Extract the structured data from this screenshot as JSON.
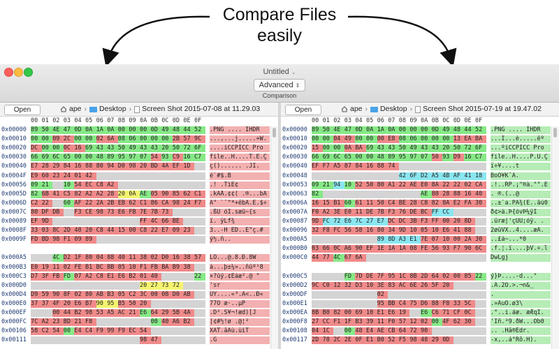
{
  "promo": {
    "line1": "Compare Files",
    "line2": "easily"
  },
  "window": {
    "title": "Untitled",
    "mode_value": "Advanced",
    "mode_caption": "Comparison"
  },
  "colors": {
    "green": "#86e986",
    "red": "#f08a8a",
    "blue": "#8ae6f0",
    "yellow": "#f4f470",
    "gray": "#d4d4d4"
  },
  "hex_header": [
    "00",
    "01",
    "02",
    "03",
    "04",
    "05",
    "06",
    "07",
    "08",
    "09",
    "0A",
    "0B",
    "0C",
    "0D",
    "0E",
    "0F"
  ],
  "left": {
    "open_label": "Open",
    "crumbs": [
      "ape",
      "Desktop",
      "Screen Shot 2015-07-08 at 11.29.03"
    ],
    "rows": [
      {
        "addr": "0x00000",
        "hex": [
          "89",
          "50",
          "4E",
          "47",
          "0D",
          "0A",
          "1A",
          "0A",
          "00",
          "00",
          "00",
          "0D",
          "49",
          "48",
          "44",
          "52"
        ],
        "text": ".PNG  ....  IHDR"
      },
      {
        "addr": "0x00010",
        "hex": [
          "00",
          "00",
          "09",
          "2C",
          "00",
          "00",
          "02",
          "6A",
          "08",
          "06",
          "00",
          "00",
          "00",
          "2B",
          "57",
          "9C"
        ],
        "text": "...,...j.....+W."
      },
      {
        "addr": "0x00020",
        "hex": [
          "DC",
          "00",
          "00",
          "0C",
          "16",
          "69",
          "43",
          "43",
          "50",
          "49",
          "43",
          "43",
          "20",
          "50",
          "72",
          "6F"
        ],
        "text": "....iCCPICC Pro"
      },
      {
        "addr": "0x00030",
        "hex": [
          "66",
          "69",
          "6C",
          "65",
          "00",
          "00",
          "48",
          "89",
          "95",
          "97",
          "07",
          "54",
          "93",
          "C9",
          "16",
          "C7"
        ],
        "text": "file..H....T.É.Ç"
      },
      {
        "addr": "0x00040",
        "hex": [
          "E7",
          "28",
          "29",
          "84",
          "16",
          "88",
          "80",
          "94",
          "D0",
          "98",
          "20",
          "BD",
          "4A",
          "EF",
          "1D",
          ""
        ],
        "text": "ç()...... .JÏ."
      },
      {
        "addr": "0x0004F",
        "hex": [
          "E9",
          "60",
          "23",
          "24",
          "01",
          "42",
          "",
          "",
          "",
          "",
          "",
          "",
          "",
          "",
          "",
          ""
        ],
        "text": "é`#$.B"
      },
      {
        "addr": "0x00056",
        "hex": [
          "09",
          "21",
          "",
          "10",
          "54",
          "EC",
          "C8",
          "A2",
          "",
          "",
          "",
          "",
          "",
          "",
          "",
          ""
        ],
        "text": ".! .TìÈ¢"
      },
      {
        "addr": "0x0005D",
        "hex": [
          "82",
          "6B",
          "41",
          "C5",
          "82",
          "A2",
          "A2",
          "28",
          "20",
          "0A",
          "AE",
          "05",
          "90",
          "85",
          "62",
          "C1"
        ],
        "text": ".kAÅ.¢¢( .®...bÁ"
      },
      {
        "addr": "0x0006D",
        "hex": [
          "C2",
          "22",
          "",
          "60",
          "AF",
          "22",
          "2A",
          "2B",
          "EB",
          "62",
          "C1",
          "86",
          "CA",
          "98",
          "24",
          "F7"
        ],
        "text": "Â\" `¯\"*+ëbÁ.Ê.$÷"
      },
      {
        "addr": "0x0007C",
        "hex": [
          "80",
          "DF",
          "DB",
          "",
          "F3",
          "CE",
          "98",
          "73",
          "E6",
          "FB",
          "7E",
          "7B",
          "73",
          "",
          "",
          ""
        ],
        "text": ".ßÛ óÎ.sæû~{s"
      },
      {
        "addr": "0x00089",
        "hex": [
          "EF",
          "9D",
          "",
          "",
          "",
          "",
          "",
          "",
          "",
          "",
          "FF",
          "4C",
          "66",
          "BE",
          "",
          ""
        ],
        "text": "ï.        ÿLf¾"
      },
      {
        "addr": "0x0008F",
        "hex": [
          "33",
          "03",
          "8C",
          "2D",
          "48",
          "20",
          "C8",
          "44",
          "15",
          "00",
          "C8",
          "22",
          "E7",
          "09",
          "23",
          ""
        ],
        "text": "3..-H ÈD..È\"ç.#"
      },
      {
        "addr": "0x0009F",
        "hex": [
          "FD",
          "BD",
          "98",
          "F1",
          "09",
          "89",
          "",
          "",
          "",
          "",
          "",
          "",
          "",
          "",
          "",
          ""
        ],
        "text": "ý½.ñ.."
      },
      {
        "addr": "",
        "hex": [],
        "text": ""
      },
      {
        "addr": "0x000A5",
        "hex": [
          "",
          "",
          "4C",
          "D2",
          "1F",
          "80",
          "04",
          "88",
          "40",
          "11",
          "38",
          "02",
          "D0",
          "16",
          "38",
          "57"
        ],
        "text": "  LÒ...@.8.Ð.8W"
      },
      {
        "addr": "0x000B3",
        "hex": [
          "E0",
          "19",
          "11",
          "02",
          "FE",
          "B1",
          "BC",
          "BB",
          "05",
          "10",
          "F1",
          "FB",
          "BA",
          "B9",
          "38",
          ""
        ],
        "text": "à...þ±¼»..ñûº¹8"
      },
      {
        "addr": "0x000C3",
        "hex": [
          "D7",
          "3F",
          "FB",
          "FD",
          "07",
          "A2",
          "C8",
          "E1",
          "E6",
          "B2",
          "01",
          "40",
          "",
          "",
          "",
          "22"
        ],
        "text": "×?ûý.¢Èáæ².@   \""
      },
      {
        "addr": "0x000D0",
        "hex": [
          "",
          "",
          "",
          "",
          "",
          "",
          "",
          "",
          "",
          "",
          "20",
          "27",
          "73",
          "72",
          "",
          ""
        ],
        "text": "           'sr"
      },
      {
        "addr": "0x000D4",
        "hex": [
          "D9",
          "59",
          "90",
          "8F",
          "02",
          "80",
          "AB",
          "B3",
          "05",
          "C2",
          "3C",
          "00",
          "08",
          "D0",
          "AB",
          ""
        ],
        "text": "ÙY....«³.Â<..Ð«"
      },
      {
        "addr": "0x000E0",
        "hex": [
          "37",
          "37",
          "4F",
          "20",
          "E6",
          "B7",
          "90",
          "95",
          "B5",
          "50",
          "20",
          "",
          "",
          "",
          "",
          ""
        ],
        "text": "77O æ·..µP "
      },
      {
        "addr": "0x000EF",
        "hex": [
          "",
          "",
          "00",
          "44",
          "B2",
          "98",
          "53",
          "A5",
          "AC",
          "21",
          "E6",
          "64",
          "29",
          "5B",
          "4A",
          ""
        ],
        "text": "  .D².S¥¬!æd)[J"
      },
      {
        "addr": "0x000FC",
        "hex": [
          "7C",
          "A2",
          "23",
          "BD",
          "21",
          "F8",
          "",
          "",
          "",
          "",
          "",
          "00",
          "40",
          "A6",
          "B2",
          ""
        ],
        "text": "|¢#½!ø     .@¦²"
      },
      {
        "addr": "0x00106",
        "hex": [
          "58",
          "C2",
          "54",
          "00",
          "E4",
          "C4",
          "F9",
          "99",
          "F9",
          "EC",
          "54",
          "",
          "",
          "",
          "",
          ""
        ],
        "text": "XÂT.äÄù.ùìT"
      },
      {
        "addr": "0x00111",
        "hex": [
          "",
          "",
          "",
          "",
          "",
          "",
          "",
          "",
          "",
          "",
          "98",
          "47",
          "",
          "",
          "",
          ""
        ],
        "text": "          .G"
      }
    ]
  },
  "right": {
    "open_label": "Open",
    "crumbs": [
      "ape",
      "Desktop",
      "Screen Shot 2015-07-19 at 19.47.02"
    ],
    "rows": [
      {
        "addr": "0x00000",
        "hex": [
          "89",
          "50",
          "4E",
          "47",
          "0D",
          "0A",
          "1A",
          "0A",
          "00",
          "00",
          "00",
          "0D",
          "49",
          "48",
          "44",
          "52"
        ],
        "text": ".PNG  ....  IHDR"
      },
      {
        "addr": "0x00010",
        "hex": [
          "00",
          "00",
          "04",
          "49",
          "00",
          "00",
          "00",
          "E8",
          "08",
          "06",
          "00",
          "00",
          "00",
          "13",
          "EA",
          "BA"
        ],
        "text": "...I...è.....êº"
      },
      {
        "addr": "0x00020",
        "hex": [
          "15",
          "00",
          "00",
          "0A",
          "BA",
          "69",
          "43",
          "43",
          "50",
          "49",
          "43",
          "43",
          "20",
          "50",
          "72",
          "6F"
        ],
        "text": "...ºiCCPICC Pro"
      },
      {
        "addr": "0x00030",
        "hex": [
          "66",
          "69",
          "6C",
          "65",
          "00",
          "00",
          "48",
          "89",
          "95",
          "97",
          "07",
          "50",
          "93",
          "D9",
          "16",
          "C7"
        ],
        "text": "file..H....P.Ù.Ç"
      },
      {
        "addr": "0x00040",
        "hex": [
          "EF",
          "F7",
          "A5",
          "87",
          "84",
          "16",
          "88",
          "74",
          "",
          "",
          "",
          "",
          "",
          "",
          "",
          ""
        ],
        "text": "ï÷¥....t"
      },
      {
        "addr": "0x00048",
        "hex": [
          "",
          "",
          "",
          "",
          "",
          "",
          "",
          "",
          "42",
          "6F",
          "D2",
          "A5",
          "4B",
          "AF",
          "41",
          "18"
        ],
        "text": "        BoÒ¥K¯A."
      },
      {
        "addr": "0x00053",
        "hex": [
          "09",
          "21",
          "94",
          "10",
          "52",
          "50",
          "80",
          "A1",
          "22",
          "AE",
          "E0",
          "8A",
          "22",
          "22",
          "02",
          "CA"
        ],
        "text": ".!..RP.¡\"®à.\"\".Ê"
      },
      {
        "addr": "0x00063",
        "hex": [
          "82",
          "",
          "",
          "",
          "",
          "",
          "",
          "",
          "",
          "",
          "AE",
          "80",
          "28",
          "88",
          "16",
          "40"
        ],
        "text": ".         ®.(..@"
      },
      {
        "addr": "0x0006A",
        "hex": [
          "16",
          "15",
          "B1",
          "60",
          "61",
          "11",
          "50",
          "C4",
          "BE",
          "28",
          "C8",
          "82",
          "8A",
          "E2",
          "FA",
          "30"
        ],
        "text": "..±`a.PÄ¾(È..âú0"
      },
      {
        "addr": "0x0007A",
        "hex": [
          "F0",
          "A2",
          "3E",
          "E0",
          "11",
          "DE",
          "7B",
          "F3",
          "76",
          "DE",
          "BC",
          "FF",
          "CC",
          "",
          "",
          ""
        ],
        "text": "ð¢>à.Þ{óvÞ¼ÿÌ"
      },
      {
        "addr": "0x00087",
        "hex": [
          "9D",
          "FC",
          "72",
          "E6",
          "7C",
          "27",
          "E7",
          "DC",
          "DC",
          "3B",
          "F3",
          "FF",
          "00",
          "20",
          "8D",
          ""
        ],
        "text": ".üræ|'çÜÜ;óÿ. ."
      },
      {
        "addr": "0x00096",
        "hex": [
          "32",
          "F8",
          "FC",
          "56",
          "58",
          "16",
          "80",
          "34",
          "9D",
          "10",
          "05",
          "10",
          "E6",
          "41",
          "88",
          ""
        ],
        "text": "2øüVX..4....æA."
      },
      {
        "addr": "0x000A5",
        "hex": [
          "",
          "",
          "",
          "",
          "",
          "",
          "89",
          "8D",
          "A3",
          "E1",
          "7E",
          "07",
          "10",
          "00",
          "2A",
          "30"
        ],
        "text": "      ..£á~...*0"
      },
      {
        "addr": "0x000B0",
        "hex": [
          "03",
          "66",
          "0C",
          "A6",
          "90",
          "EF",
          "1E",
          "1A",
          "1A",
          "08",
          "FE",
          "56",
          "93",
          "F7",
          "90",
          "6C"
        ],
        "text": ".f.¦.ï....þV.÷.l"
      },
      {
        "addr": "0x000C0",
        "hex": [
          "44",
          "77",
          "4C",
          "67",
          "6A",
          "",
          "",
          "",
          "",
          "",
          "",
          "",
          "",
          "",
          "",
          ""
        ],
        "text": "DwLgj"
      },
      {
        "addr": "",
        "hex": [],
        "text": ""
      },
      {
        "addr": "0x000C5",
        "hex": [
          "",
          "",
          "",
          "FD",
          "7D",
          "DE",
          "7F",
          "95",
          "1C",
          "8B",
          "2D",
          "64",
          "02",
          "00",
          "85",
          "22"
        ],
        "text": "   ý}Þ....-d...\""
      },
      {
        "addr": "0x000D2",
        "hex": [
          "9C",
          "C0",
          "12",
          "32",
          "D3",
          "10",
          "3E",
          "83",
          "AC",
          "6E",
          "26",
          "5F",
          "20",
          "",
          "",
          ""
        ],
        "text": ".À.2Ó.>.¬n&_ "
      },
      {
        "addr": "0x000DF",
        "hex": [
          "",
          "",
          "",
          "",
          "",
          "",
          "02",
          "",
          "",
          "",
          "",
          "",
          "",
          "",
          "",
          ""
        ],
        "text": "      ."
      },
      {
        "addr": "0x000E1",
        "hex": [
          "",
          "",
          "",
          "",
          "",
          "",
          "95",
          "BB",
          "C4",
          "75",
          "D6",
          "88",
          "F8",
          "33",
          "5C",
          ""
        ],
        "text": "      .»ÄuÖ.ø3\\"
      },
      {
        "addr": "0x000EA",
        "hex": [
          "8B",
          "B0",
          "82",
          "00",
          "69",
          "10",
          "E1",
          "E6",
          "19",
          "",
          "E6",
          "C6",
          "71",
          "CF",
          "0C",
          ""
        ],
        "text": ".°..i.áæ. æÆqÏ."
      },
      {
        "addr": "0x000F8",
        "hex": [
          "27",
          "CC",
          "F1",
          "1F",
          "B3",
          "39",
          "11",
          "F0",
          "57",
          "12",
          "02",
          "00",
          "4F",
          "62",
          "30",
          ""
        ],
        "text": "'Ìñ.³9.ðW...Ob0"
      },
      {
        "addr": "0x00108",
        "hex": [
          "04",
          "1C",
          "",
          "00",
          "48",
          "E4",
          "AE",
          "CB",
          "64",
          "72",
          "90",
          "",
          "",
          "",
          "",
          ""
        ],
        "text": ".. .Hä®Ëdr."
      },
      {
        "addr": "0x00117",
        "hex": [
          "2D",
          "78",
          "2C",
          "2E",
          "0F",
          "E1",
          "B0",
          "52",
          "F5",
          "98",
          "48",
          "29",
          "0D",
          "",
          "",
          ""
        ],
        "text": "-x,..á°Rõ.H)."
      }
    ]
  }
}
